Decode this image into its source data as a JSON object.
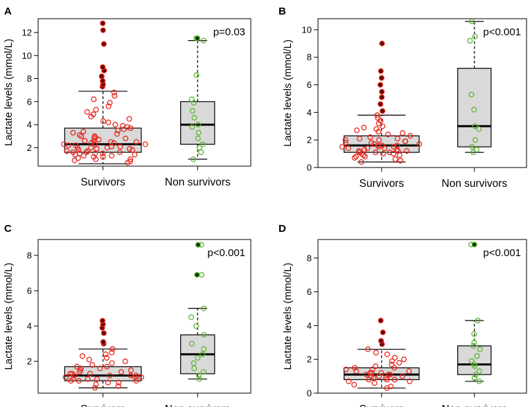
{
  "chart_data": [
    {
      "type": "box-dot",
      "panel": "A",
      "p_value": "p=0.03",
      "ylabel": "Lactate levels (mmol/L)",
      "categories": [
        "Survivors",
        "Non survivors"
      ],
      "ylim": [
        0.4,
        13.2
      ],
      "yticks": [
        2,
        4,
        6,
        8,
        10,
        12
      ],
      "groups": [
        {
          "name": "Survivors",
          "min": 0.6,
          "q1": 1.6,
          "median": 2.3,
          "q3": 3.7,
          "max": 6.9,
          "outliers": [
            7.3,
            7.5,
            7.8,
            8.2,
            8.7,
            9.0,
            11.0,
            12.2,
            12.8
          ],
          "values": [
            0.7,
            0.8,
            0.9,
            1.0,
            1.0,
            1.1,
            1.2,
            1.2,
            1.3,
            1.3,
            1.4,
            1.4,
            1.5,
            1.5,
            1.5,
            1.6,
            1.6,
            1.6,
            1.7,
            1.7,
            1.7,
            1.8,
            1.8,
            1.9,
            1.9,
            2.0,
            2.0,
            2.0,
            2.1,
            2.1,
            2.2,
            2.2,
            2.3,
            2.3,
            2.3,
            2.4,
            2.4,
            2.5,
            2.5,
            2.6,
            2.6,
            2.7,
            2.8,
            2.8,
            2.9,
            3.0,
            3.0,
            3.1,
            3.2,
            3.3,
            3.4,
            3.5,
            3.6,
            3.7,
            3.8,
            3.9,
            4.0,
            4.2,
            4.3,
            4.5,
            4.7,
            4.9,
            5.1,
            5.3,
            5.6,
            5.9,
            6.2,
            6.5,
            6.8
          ]
        },
        {
          "name": "Non survivors",
          "min": 1.0,
          "q1": 2.3,
          "median": 4.0,
          "q3": 6.0,
          "max": 11.3,
          "outliers": [
            11.5
          ],
          "values": [
            1.0,
            1.6,
            2.0,
            2.3,
            2.8,
            3.3,
            3.8,
            4.0,
            4.6,
            5.2,
            5.9,
            6.2,
            8.3,
            11.3,
            11.5
          ]
        }
      ]
    },
    {
      "type": "box-dot",
      "panel": "B",
      "p_value": "p<0.001",
      "ylabel": "Lactate levels (mmol/L)",
      "categories": [
        "Survivors",
        "Non survivors"
      ],
      "ylim": [
        0,
        10.8
      ],
      "yticks": [
        0,
        2,
        4,
        6,
        8,
        10
      ],
      "groups": [
        {
          "name": "Survivors",
          "min": 0.4,
          "q1": 1.1,
          "median": 1.6,
          "q3": 2.3,
          "max": 3.8,
          "outliers": [
            4.1,
            4.6,
            5.1,
            5.5,
            6.0,
            6.5,
            7.0,
            9.0
          ],
          "values": [
            0.4,
            0.5,
            0.6,
            0.7,
            0.8,
            0.8,
            0.9,
            0.9,
            1.0,
            1.0,
            1.0,
            1.1,
            1.1,
            1.1,
            1.2,
            1.2,
            1.2,
            1.3,
            1.3,
            1.4,
            1.4,
            1.4,
            1.5,
            1.5,
            1.5,
            1.6,
            1.6,
            1.6,
            1.7,
            1.7,
            1.8,
            1.8,
            1.9,
            1.9,
            2.0,
            2.0,
            2.1,
            2.1,
            2.2,
            2.3,
            2.4,
            2.5,
            2.6,
            2.7,
            2.8,
            2.9,
            3.0,
            3.2,
            3.4,
            3.6,
            3.8
          ]
        },
        {
          "name": "Non survivors",
          "min": 1.1,
          "q1": 1.5,
          "median": 3.0,
          "q3": 7.2,
          "max": 10.6,
          "outliers": [],
          "values": [
            1.1,
            1.3,
            1.5,
            2.0,
            2.8,
            3.0,
            4.2,
            5.3,
            9.2,
            9.5,
            10.6
          ]
        }
      ]
    },
    {
      "type": "box-dot",
      "panel": "C",
      "p_value": "p<0.001",
      "ylabel": "Lactate levels (mmol/L)",
      "categories": [
        "Survivors",
        "Non survivors"
      ],
      "ylim": [
        0.2,
        8.9
      ],
      "yticks": [
        2,
        4,
        6,
        8
      ],
      "groups": [
        {
          "name": "Survivors",
          "min": 0.5,
          "q1": 0.9,
          "median": 1.2,
          "q3": 1.7,
          "max": 2.7,
          "outliers": [
            3.0,
            3.1,
            3.6,
            3.9,
            4.1,
            4.3
          ],
          "values": [
            0.5,
            0.6,
            0.7,
            0.8,
            0.8,
            0.9,
            0.9,
            0.9,
            1.0,
            1.0,
            1.0,
            1.1,
            1.1,
            1.1,
            1.2,
            1.2,
            1.2,
            1.2,
            1.3,
            1.3,
            1.3,
            1.4,
            1.4,
            1.5,
            1.5,
            1.6,
            1.6,
            1.7,
            1.7,
            1.8,
            1.9,
            2.0,
            2.1,
            2.2,
            2.3,
            2.4,
            2.5,
            2.7
          ]
        },
        {
          "name": "Non survivors",
          "min": 1.0,
          "q1": 1.3,
          "median": 2.4,
          "q3": 3.5,
          "max": 5.0,
          "outliers": [
            6.9,
            8.6
          ],
          "values": [
            1.0,
            1.2,
            1.4,
            1.6,
            1.9,
            2.2,
            2.4,
            2.7,
            3.0,
            3.5,
            4.0,
            4.5,
            5.0,
            6.9,
            8.6
          ]
        }
      ]
    },
    {
      "type": "box-dot",
      "panel": "D",
      "p_value": "p<0.001",
      "ylabel": "Lactate levels (mmol/L)",
      "categories": [
        "Survivors",
        "Non survivors"
      ],
      "ylim": [
        0,
        9.1
      ],
      "yticks": [
        0,
        2,
        4,
        6,
        8
      ],
      "groups": [
        {
          "name": "Survivors",
          "min": 0.3,
          "q1": 0.8,
          "median": 1.1,
          "q3": 1.5,
          "max": 2.6,
          "outliers": [
            2.9,
            3.1,
            3.6,
            4.3
          ],
          "values": [
            0.3,
            0.4,
            0.5,
            0.6,
            0.7,
            0.7,
            0.8,
            0.8,
            0.8,
            0.9,
            0.9,
            1.0,
            1.0,
            1.0,
            1.1,
            1.1,
            1.1,
            1.2,
            1.2,
            1.2,
            1.3,
            1.3,
            1.4,
            1.4,
            1.5,
            1.5,
            1.6,
            1.7,
            1.8,
            1.9,
            2.0,
            2.1,
            2.3,
            2.4,
            2.6
          ]
        },
        {
          "name": "Non survivors",
          "min": 0.7,
          "q1": 1.1,
          "median": 1.7,
          "q3": 2.8,
          "max": 4.3,
          "outliers": [
            8.8
          ],
          "values": [
            0.7,
            0.9,
            1.1,
            1.3,
            1.6,
            1.7,
            1.9,
            2.2,
            2.6,
            2.8,
            3.0,
            3.5,
            4.3,
            8.8
          ]
        }
      ]
    }
  ],
  "colors": {
    "survivors_point": "#e8281e",
    "survivors_outlier_fill": "#5a0a0a",
    "nonsurvivors_point": "#5cb832",
    "nonsurvivors_outlier_fill": "#0a3a0a",
    "box_fill": "#d9d9d9"
  }
}
